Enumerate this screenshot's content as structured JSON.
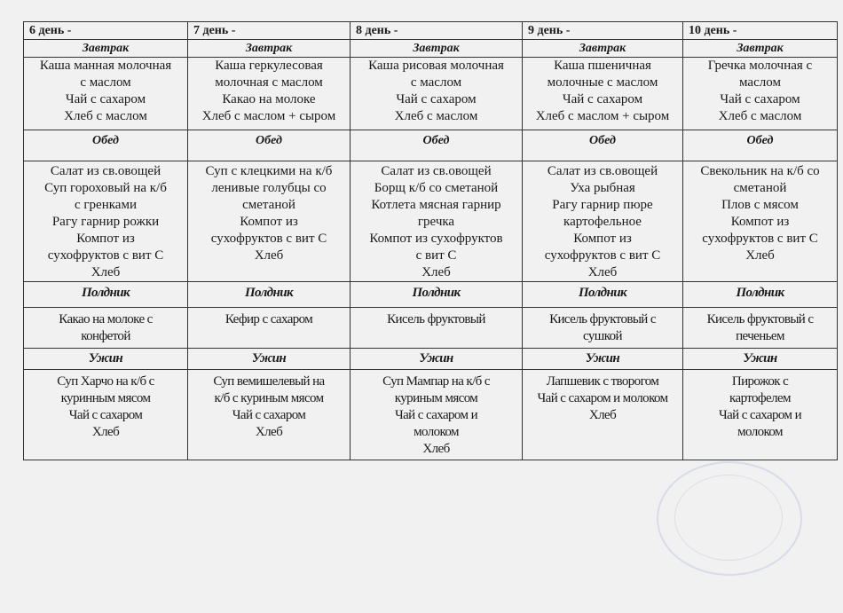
{
  "meals": {
    "breakfast": "Завтрак",
    "lunch": "Обед",
    "snack": "Полдник",
    "dinner": "Ужин"
  },
  "days": [
    {
      "title": "6 день -",
      "breakfast": [
        "Каша манная молочная",
        "с маслом",
        "Чай с сахаром",
        "Хлеб с маслом"
      ],
      "lunch": [
        "Салат из св.овощей",
        "Суп гороховый на к/б",
        "с гренками",
        "Рагу гарнир рожки",
        "Компот из",
        "сухофруктов с вит С",
        "Хлеб"
      ],
      "snack": [
        "Какао на молоке с",
        "конфетой"
      ],
      "dinner": [
        "Суп Харчо на к/б с",
        "куринным мясом",
        "Чай с сахаром",
        "Хлеб"
      ]
    },
    {
      "title": "7 день -",
      "breakfast": [
        "Каша геркулесовая",
        "молочная с маслом",
        "Какао на молоке",
        "Хлеб с маслом + сыром"
      ],
      "lunch": [
        "Суп с клецкими на к/б",
        "ленивые голубцы со",
        "сметаной",
        "Компот  из",
        "сухофруктов с вит С",
        "Хлеб"
      ],
      "snack": [
        "Кефир с сахаром"
      ],
      "dinner": [
        "Суп вемишелевый на",
        "к/б с куриным мясом",
        "Чай с сахаром",
        "Хлеб"
      ]
    },
    {
      "title": "8 день  -",
      "breakfast": [
        "Каша рисовая молочная",
        "с маслом",
        "Чай с сахаром",
        "Хлеб  с маслом"
      ],
      "lunch": [
        "Салат из св.овощей",
        "Борщ к/б со сметаной",
        "Котлета мясная гарнир",
        "гречка",
        "Компот из сухофруктов",
        "с вит С",
        "Хлеб"
      ],
      "snack": [
        "Кисель фруктовый"
      ],
      "dinner": [
        "Суп Мампар на к/б с",
        "куриным мясом",
        "Чай с сахаром и",
        "молоком",
        "Хлеб"
      ]
    },
    {
      "title": "9 день  -",
      "breakfast": [
        "Каша пшеничная",
        "молочные с маслом",
        "Чай с сахаром",
        "Хлеб с маслом + сыром"
      ],
      "lunch": [
        "Салат из св.овощей",
        "Уха рыбная",
        "Рагу гарнир пюре",
        "картофельное",
        "Компот из",
        "сухофруктов с вит С",
        "Хлеб"
      ],
      "snack": [
        "Кисель фруктовый с",
        "сушкой"
      ],
      "dinner": [
        "Лапшевик с творогом",
        "Чай с сахаром и молоком",
        "Хлеб"
      ]
    },
    {
      "title": "10 день  -",
      "breakfast": [
        "Гречка молочная с",
        "маслом",
        "Чай с сахаром",
        "Хлеб с маслом"
      ],
      "lunch": [
        "Свекольник на к/б со",
        "сметаной",
        "Плов с мясом",
        "Компот из",
        "сухофруктов с вит С",
        "Хлеб"
      ],
      "snack": [
        "Кисель фруктовый с",
        "печеньем"
      ],
      "dinner": [
        "Пирожок с",
        "картофелем",
        "Чай с сахаром и",
        "молоком"
      ]
    }
  ]
}
